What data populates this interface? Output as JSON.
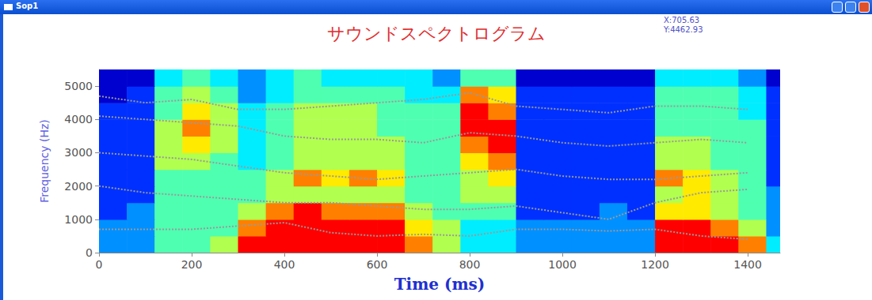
{
  "window_title": "Sop1",
  "cursor_readout": [
    "X:705.63",
    "Y:4462.93"
  ],
  "chart_data": {
    "type": "spectrogram",
    "title": "サウンドスペクトログラム",
    "x_label": "Time (ms)",
    "y_label": "Frequency (Hz)",
    "xlim": [
      0,
      1470
    ],
    "ylim": [
      0,
      5500
    ],
    "xticks": [
      0,
      200,
      400,
      600,
      800,
      1000,
      1200,
      1400
    ],
    "yticks": [
      0,
      1000,
      2000,
      3000,
      4000,
      5000
    ],
    "grid": false,
    "cells": {
      "time_edges": [
        0,
        60,
        120,
        180,
        240,
        300,
        360,
        420,
        480,
        540,
        600,
        660,
        720,
        780,
        840,
        900,
        960,
        1020,
        1080,
        1140,
        1200,
        1260,
        1320,
        1380,
        1440,
        1470
      ],
      "freq_edges": [
        0,
        500,
        1000,
        1500,
        2000,
        2500,
        3000,
        3500,
        4000,
        4500,
        5000,
        5500
      ],
      "level_range": [
        0,
        10
      ],
      "levels": [
        [
          3,
          3,
          5,
          5,
          6,
          9,
          9,
          9,
          9,
          9,
          9,
          8,
          6,
          4,
          4,
          3,
          3,
          3,
          3,
          3,
          9,
          9,
          9,
          8,
          4
        ],
        [
          3,
          3,
          5,
          5,
          5,
          8,
          9,
          9,
          9,
          9,
          9,
          7,
          6,
          4,
          4,
          3,
          3,
          3,
          3,
          3,
          9,
          9,
          8,
          6,
          3
        ],
        [
          2,
          3,
          5,
          5,
          5,
          6,
          8,
          9,
          8,
          8,
          8,
          6,
          5,
          5,
          5,
          2,
          2,
          2,
          3,
          2,
          7,
          7,
          6,
          5,
          3
        ],
        [
          2,
          2,
          5,
          5,
          5,
          5,
          6,
          6,
          6,
          6,
          6,
          5,
          5,
          6,
          6,
          2,
          2,
          2,
          2,
          2,
          6,
          7,
          6,
          5,
          3
        ],
        [
          2,
          2,
          5,
          5,
          5,
          5,
          6,
          8,
          7,
          8,
          7,
          5,
          5,
          6,
          7,
          2,
          2,
          2,
          2,
          2,
          8,
          7,
          6,
          5,
          2
        ],
        [
          2,
          2,
          6,
          6,
          5,
          4,
          5,
          6,
          6,
          6,
          6,
          5,
          5,
          7,
          8,
          2,
          2,
          2,
          2,
          2,
          6,
          6,
          5,
          5,
          2
        ],
        [
          2,
          2,
          6,
          7,
          6,
          4,
          5,
          6,
          6,
          6,
          6,
          5,
          5,
          8,
          9,
          2,
          2,
          2,
          2,
          2,
          6,
          6,
          5,
          5,
          2
        ],
        [
          2,
          2,
          6,
          8,
          6,
          4,
          5,
          6,
          6,
          6,
          5,
          5,
          5,
          9,
          9,
          2,
          2,
          2,
          2,
          2,
          5,
          5,
          5,
          5,
          2
        ],
        [
          2,
          2,
          5,
          7,
          6,
          4,
          5,
          6,
          6,
          6,
          5,
          5,
          5,
          9,
          8,
          2,
          2,
          2,
          2,
          2,
          5,
          5,
          5,
          4,
          2
        ],
        [
          1,
          2,
          5,
          6,
          5,
          3,
          4,
          5,
          5,
          5,
          5,
          4,
          4,
          8,
          7,
          2,
          2,
          2,
          2,
          2,
          5,
          5,
          5,
          4,
          2
        ],
        [
          1,
          1,
          4,
          5,
          4,
          3,
          4,
          5,
          4,
          4,
          4,
          4,
          3,
          5,
          5,
          1,
          1,
          1,
          1,
          1,
          4,
          4,
          4,
          3,
          1
        ]
      ]
    },
    "formant_tracks": {
      "color": "#9a9a9a",
      "line_style": "dotted",
      "x": [
        0,
        100,
        200,
        300,
        400,
        500,
        600,
        700,
        800,
        900,
        1000,
        1100,
        1200,
        1300,
        1400
      ],
      "values": [
        [
          700,
          700,
          700,
          800,
          900,
          600,
          500,
          550,
          500,
          700,
          700,
          650,
          700,
          500,
          400
        ],
        [
          2000,
          1800,
          1700,
          1600,
          1500,
          1500,
          1400,
          1300,
          1300,
          1400,
          1200,
          1000,
          1500,
          1800,
          1900
        ],
        [
          3000,
          2900,
          2800,
          2600,
          2400,
          2300,
          2200,
          2300,
          2400,
          2500,
          2300,
          2200,
          2200,
          2300,
          2400
        ],
        [
          4100,
          4000,
          3900,
          3800,
          3500,
          3400,
          3400,
          3300,
          3600,
          3500,
          3300,
          3200,
          3300,
          3400,
          3300
        ],
        [
          4700,
          4500,
          4600,
          4300,
          4300,
          4400,
          4500,
          4600,
          4800,
          4400,
          4300,
          4200,
          4400,
          4400,
          4300
        ]
      ]
    }
  }
}
